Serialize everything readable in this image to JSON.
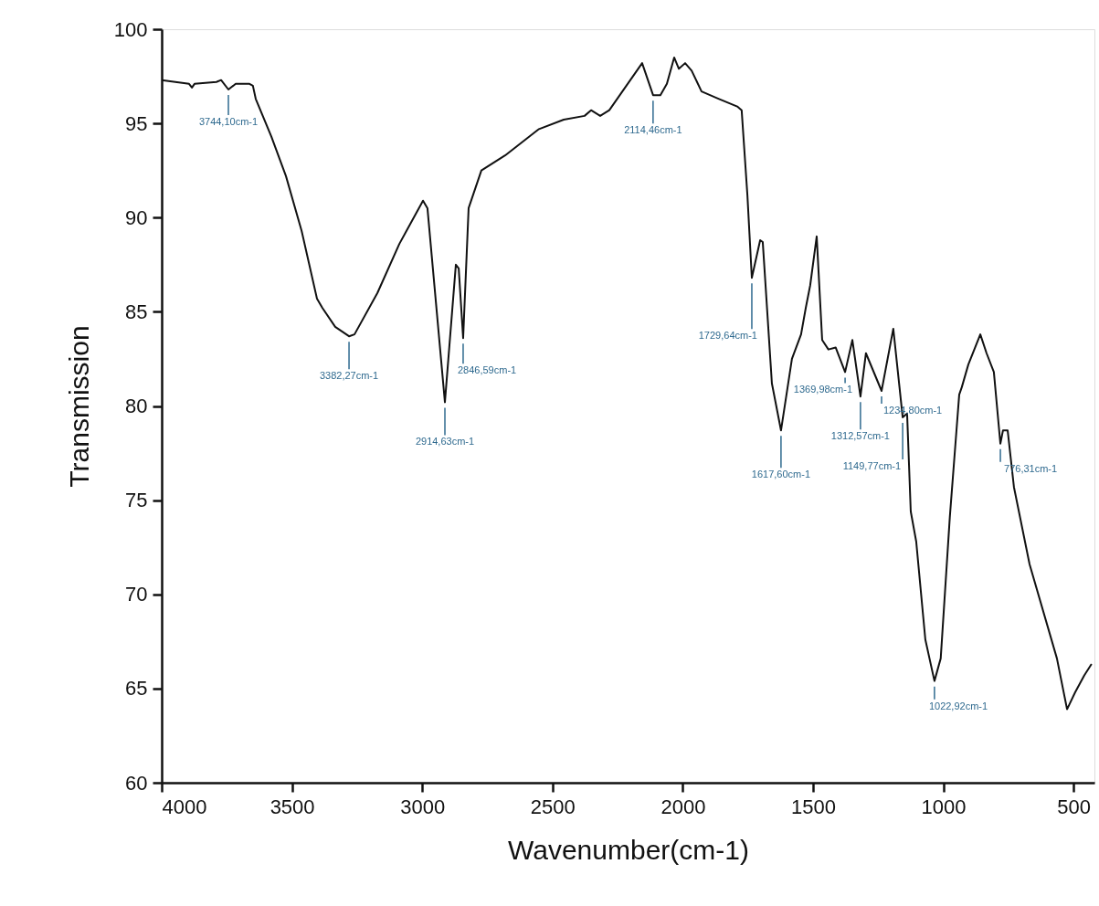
{
  "chart_data": {
    "type": "line",
    "xlabel": "Wavenumber(cm-1)",
    "ylabel": "Transmission",
    "color": "#111111",
    "x": [
      4000,
      3895,
      3884,
      3874,
      3790,
      3772,
      3744,
      3716,
      3663,
      3650,
      3639,
      3579,
      3523,
      3463,
      3404,
      3383,
      3334,
      3281,
      3260,
      3172,
      3088,
      2997,
      2980,
      2913,
      2871,
      2860,
      2843,
      2822,
      2773,
      2682,
      2552,
      2457,
      2377,
      2352,
      2317,
      2282,
      2156,
      2114,
      2086,
      2061,
      2033,
      2015,
      1991,
      1966,
      1928,
      1861,
      1791,
      1774,
      1752,
      1735,
      1703,
      1693,
      1658,
      1623,
      1581,
      1546,
      1528,
      1511,
      1486,
      1465,
      1441,
      1413,
      1377,
      1349,
      1318,
      1297,
      1237,
      1192,
      1156,
      1139,
      1125,
      1104,
      1069,
      1034,
      1010,
      975,
      939,
      929,
      904,
      858,
      834,
      806,
      781,
      771,
      753,
      729,
      669,
      564,
      525,
      494,
      459,
      431
    ],
    "values": [
      97.3,
      97.1,
      96.9,
      97.1,
      97.2,
      97.3,
      96.8,
      97.1,
      97.1,
      97.0,
      96.3,
      94.3,
      92.2,
      89.3,
      85.7,
      85.2,
      84.2,
      83.7,
      83.8,
      86.0,
      88.6,
      90.9,
      90.5,
      80.2,
      87.5,
      87.3,
      83.6,
      90.5,
      92.5,
      93.3,
      94.7,
      95.2,
      95.4,
      95.7,
      95.4,
      95.7,
      98.2,
      96.5,
      96.5,
      97.1,
      98.5,
      97.9,
      98.2,
      97.8,
      96.7,
      96.3,
      95.9,
      95.7,
      91.2,
      86.8,
      88.8,
      88.7,
      81.2,
      78.7,
      82.5,
      83.8,
      85.2,
      86.4,
      89.0,
      83.5,
      83.0,
      83.1,
      81.8,
      83.5,
      80.5,
      82.8,
      80.8,
      84.1,
      79.4,
      79.6,
      74.4,
      72.8,
      67.6,
      65.4,
      66.6,
      74.1,
      80.6,
      81.0,
      82.2,
      83.8,
      82.8,
      81.8,
      78.0,
      78.7,
      78.7,
      75.7,
      71.6,
      66.6,
      63.9,
      64.8,
      65.7,
      66.3
    ],
    "xlim": [
      4000,
      420
    ],
    "ylim": [
      60,
      100
    ],
    "xticks": [
      4000,
      3500,
      3000,
      2500,
      2000,
      1500,
      1000,
      500
    ],
    "yticks": [
      60,
      65,
      70,
      75,
      80,
      85,
      90,
      95,
      100
    ],
    "annotations": [
      {
        "text": "3744,10cm-1",
        "x": 3744,
        "y": 96.8
      },
      {
        "text": "3382,27cm-1",
        "x": 3281,
        "y": 83.7
      },
      {
        "text": "2914,63cm-1",
        "x": 2913,
        "y": 80.2
      },
      {
        "text": "2846,59cm-1",
        "x": 2843,
        "y": 83.6
      },
      {
        "text": "2114,46cm-1",
        "x": 2114,
        "y": 96.5
      },
      {
        "text": "1729,64cm-1",
        "x": 1735,
        "y": 86.8
      },
      {
        "text": "1617,60cm-1",
        "x": 1623,
        "y": 78.7
      },
      {
        "text": "1369,98cm-1",
        "x": 1377,
        "y": 81.8
      },
      {
        "text": "1312,57cm-1",
        "x": 1318,
        "y": 80.5
      },
      {
        "text": "1234,80cm-1",
        "x": 1237,
        "y": 80.8
      },
      {
        "text": "1149,77cm-1",
        "x": 1156,
        "y": 79.4
      },
      {
        "text": "1022,92cm-1",
        "x": 1034,
        "y": 65.4
      },
      {
        "text": "776,31cm-1",
        "x": 781,
        "y": 78.0
      }
    ],
    "grid": false
  }
}
